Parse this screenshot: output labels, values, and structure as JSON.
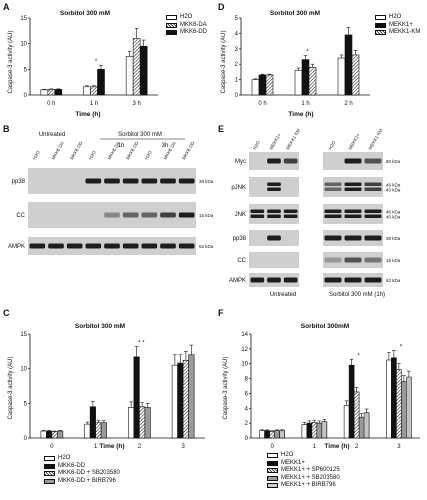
{
  "panels": {
    "A": {
      "label": "A",
      "title": "Sorbitol 300 mM",
      "ylabel": "Caspase-3 activity (AU)",
      "xlabel": "Time (h)"
    },
    "B": {
      "label": "B",
      "untreated": "Untreated",
      "treated": "Sorbitol 300 mM",
      "times": [
        "1h",
        "3h"
      ],
      "rows": [
        "pp38",
        "CC",
        "AMPK"
      ],
      "kda": [
        "38 kDa",
        "15 kDa",
        "62 kDa"
      ],
      "lane_labels": [
        "H2O",
        "MKK6 DA",
        "MKK6 DD",
        "H2O",
        "MKK6 DA",
        "MKK6 DD",
        "H2O",
        "MKK6 DA",
        "MKK6 DD"
      ]
    },
    "C": {
      "label": "C",
      "title": "Sorbitol 300 mM",
      "ylabel": "Caspase-3 activity (AU)",
      "xlabel": "Time (h)"
    },
    "D": {
      "label": "D",
      "title": "Sorbitol 300 mM",
      "ylabel": "Caspase-3 activity (AU)",
      "xlabel": "Time (h)"
    },
    "E": {
      "label": "E",
      "untreated": "Untreated",
      "treated": "Sorbitol 300 mM (1h)",
      "rows": [
        "Myc",
        "pJNK",
        "JNK",
        "pp38",
        "CC",
        "AMPK"
      ],
      "kda": [
        "80 kDa",
        "46 kDa\n40 kDa",
        "46 kDa\n40 kDa",
        "38 kDa",
        "15 kDa",
        "62 kDa"
      ],
      "lane_labels": [
        "H2O",
        "MEKK1+",
        "MEKK1 KM",
        "H2O",
        "MEKK1+",
        "MEKK1 KM"
      ]
    },
    "F": {
      "label": "F",
      "title": "Sorbitol 300mM",
      "ylabel": "Caspase-3 activity (AU)",
      "xlabel": "Time (h)"
    }
  },
  "chart_data": [
    {
      "id": "A",
      "type": "bar",
      "title": "Sorbitol 300 mM",
      "xlabel": "Time (h)",
      "ylabel": "Caspase-3 activity (AU)",
      "categories": [
        "0 h",
        "1 h",
        "3 h"
      ],
      "ylim": [
        0,
        15
      ],
      "yticks": [
        0,
        5,
        10,
        15
      ],
      "series": [
        {
          "name": "H2O",
          "fill": "white",
          "values": [
            1.0,
            1.6,
            7.5
          ],
          "errors": [
            0.1,
            0.2,
            1.0
          ]
        },
        {
          "name": "MKK6-DA",
          "fill": "hatch",
          "values": [
            1.1,
            1.6,
            11.0
          ],
          "errors": [
            0.1,
            0.2,
            2.0
          ]
        },
        {
          "name": "MKK6-DD",
          "fill": "black",
          "values": [
            1.1,
            5.0,
            9.5
          ],
          "errors": [
            0.1,
            0.8,
            1.2
          ]
        }
      ],
      "annotations": [
        {
          "text": "*",
          "category": "1 h"
        }
      ]
    },
    {
      "id": "C",
      "type": "bar",
      "title": "Sorbitol 300 mM",
      "xlabel": "Time (h)",
      "ylabel": "Caspase-3 activity (AU)",
      "categories": [
        "0",
        "1",
        "2",
        "3"
      ],
      "ylim": [
        0,
        15
      ],
      "yticks": [
        0,
        5,
        10,
        15
      ],
      "series": [
        {
          "name": "H2O",
          "fill": "white",
          "values": [
            1.0,
            2.0,
            4.4,
            10.5
          ],
          "errors": [
            0.1,
            0.3,
            0.8,
            1.5
          ]
        },
        {
          "name": "MKK6-DD",
          "fill": "black",
          "values": [
            1.0,
            4.5,
            11.7,
            10.8
          ],
          "errors": [
            0.1,
            0.8,
            1.5,
            1.2
          ]
        },
        {
          "name": "MKK6-DD + SB203580",
          "fill": "hatch",
          "values": [
            0.9,
            2.2,
            4.5,
            11.2
          ],
          "errors": [
            0.1,
            0.3,
            0.6,
            1.3
          ]
        },
        {
          "name": "MKK6-DD + BIRB796",
          "fill": "gray",
          "values": [
            1.0,
            2.2,
            4.4,
            12.0
          ],
          "errors": [
            0.1,
            0.3,
            0.6,
            1.4
          ]
        }
      ],
      "annotations": [
        {
          "text": "*",
          "category": "2"
        },
        {
          "text": "*",
          "category": "2"
        }
      ]
    },
    {
      "id": "D",
      "type": "bar",
      "title": "Sorbitol 300 mM",
      "xlabel": "Time (h)",
      "ylabel": "Caspase-3 activity (AU)",
      "categories": [
        "0 h",
        "1 h",
        "2 h"
      ],
      "ylim": [
        0,
        5
      ],
      "yticks": [
        0,
        1,
        2,
        3,
        4,
        5
      ],
      "series": [
        {
          "name": "H2O",
          "fill": "white",
          "values": [
            1.0,
            1.6,
            2.4
          ],
          "errors": [
            0.05,
            0.15,
            0.2
          ]
        },
        {
          "name": "MEKK1+",
          "fill": "black",
          "values": [
            1.3,
            2.3,
            3.9
          ],
          "errors": [
            0.05,
            0.25,
            0.5
          ]
        },
        {
          "name": "MEKK1-KM",
          "fill": "hatch",
          "values": [
            1.3,
            1.8,
            2.6
          ],
          "errors": [
            0.05,
            0.2,
            0.3
          ]
        }
      ],
      "annotations": [
        {
          "text": "*",
          "category": "1 h"
        }
      ]
    },
    {
      "id": "F",
      "type": "bar",
      "title": "Sorbitol 300mM",
      "xlabel": "Time (h)",
      "ylabel": "Caspase-3 activity (AU)",
      "categories": [
        "0",
        "1",
        "2",
        "3"
      ],
      "ylim": [
        0,
        14
      ],
      "yticks": [
        0,
        2,
        4,
        6,
        8,
        10,
        12,
        14
      ],
      "series": [
        {
          "name": "H2O",
          "fill": "white",
          "values": [
            1.0,
            1.8,
            4.4,
            10.5
          ],
          "errors": [
            0.1,
            0.3,
            0.6,
            1.0
          ]
        },
        {
          "name": "MEKK1+",
          "fill": "black",
          "values": [
            1.0,
            2.0,
            9.8,
            10.8
          ],
          "errors": [
            0.1,
            0.3,
            0.8,
            1.0
          ]
        },
        {
          "name": "MEKK1+ + SP600125",
          "fill": "hatch",
          "values": [
            0.9,
            2.1,
            6.2,
            9.2
          ],
          "errors": [
            0.1,
            0.3,
            0.6,
            0.8
          ]
        },
        {
          "name": "MEKK1+ + SB203580",
          "fill": "gray",
          "values": [
            1.0,
            2.0,
            2.8,
            7.6
          ],
          "errors": [
            0.1,
            0.3,
            0.5,
            0.8
          ]
        },
        {
          "name": "MEKK1+ + BIRB796",
          "fill": "dots",
          "values": [
            1.0,
            2.2,
            3.4,
            8.2
          ],
          "errors": [
            0.1,
            0.3,
            0.5,
            0.8
          ]
        }
      ],
      "annotations": [
        {
          "text": "*",
          "category": "2"
        },
        {
          "text": "*",
          "category": "3"
        }
      ]
    }
  ]
}
